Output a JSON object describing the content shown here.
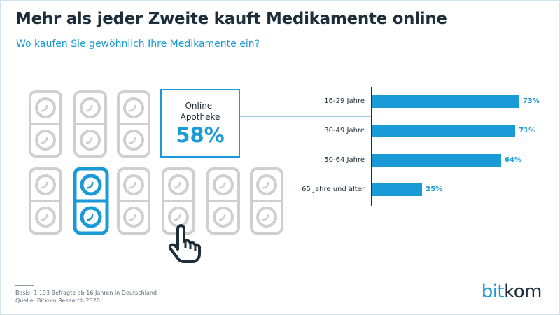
{
  "header": {
    "title": "Mehr als jeder Zweite kauft Medikamente online",
    "subtitle": "Wo kaufen Sie gewöhnlich Ihre Medikamente ein?"
  },
  "callout": {
    "label_line1": "Online-",
    "label_line2": "Apotheke",
    "value": "58%"
  },
  "chart_data": {
    "type": "bar",
    "orientation": "horizontal",
    "categories": [
      "16-29 Jahre",
      "30-49 Jahre",
      "50-64 Jahre",
      "65 Jahre und älter"
    ],
    "values": [
      73,
      71,
      64,
      25
    ],
    "value_labels": [
      "73%",
      "71%",
      "64%",
      "25%"
    ],
    "xlim": [
      0,
      100
    ],
    "grid": false
  },
  "footer": {
    "line1": "Basis: 1.193 Befragte ab 16 Jahren in Deutschland",
    "line2": "Quelle: Bitkom Research 2020"
  },
  "logo": {
    "part1": "bit",
    "part2": "kom"
  },
  "colors": {
    "accent": "#1a9ad6",
    "pack_gray": "#cfcfcf",
    "dark": "#1d2d3a"
  },
  "icons": {
    "pill_pack": "pill-blister-icon",
    "highlighted_pack": "pill-blister-highlight-icon",
    "pointer": "hand-pointer-icon"
  }
}
